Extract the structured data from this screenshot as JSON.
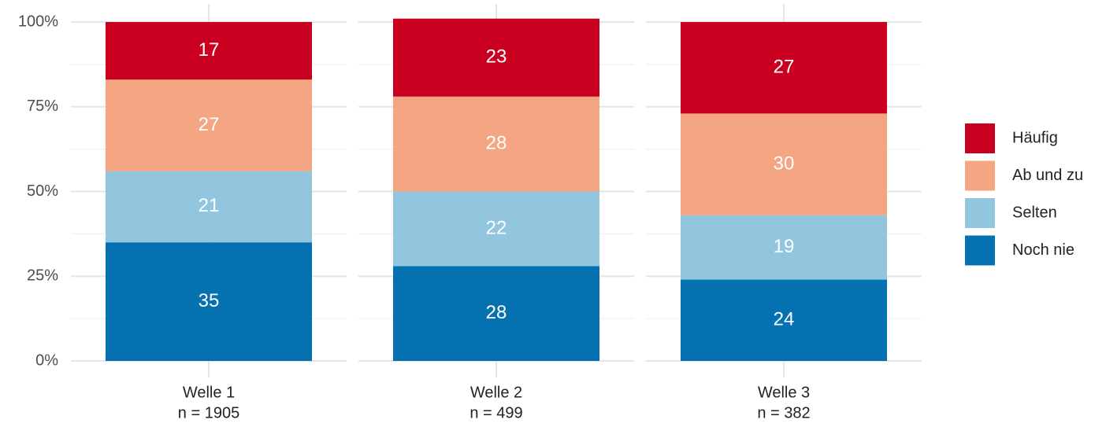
{
  "chart_data": {
    "type": "stacked_bar",
    "categories": [
      "Welle 1",
      "Welle 2",
      "Welle 3"
    ],
    "category_sublabels": [
      "n = 1905",
      "n = 499",
      "n = 382"
    ],
    "series": [
      {
        "name": "Noch nie",
        "color": "#0571b0",
        "values": [
          35,
          28,
          24
        ]
      },
      {
        "name": "Selten",
        "color": "#92c5de",
        "values": [
          21,
          22,
          19
        ]
      },
      {
        "name": "Ab und zu",
        "color": "#f4a582",
        "values": [
          27,
          28,
          30
        ]
      },
      {
        "name": "Häufig",
        "color": "#ca0020",
        "values": [
          17,
          23,
          27
        ]
      }
    ],
    "ylim": [
      0,
      100
    ],
    "yticks": [
      {
        "value": 0,
        "label": "0%"
      },
      {
        "value": 25,
        "label": "25%"
      },
      {
        "value": 50,
        "label": "50%"
      },
      {
        "value": 75,
        "label": "75%"
      },
      {
        "value": 100,
        "label": "100%"
      }
    ],
    "grid": true,
    "legend": "right"
  }
}
